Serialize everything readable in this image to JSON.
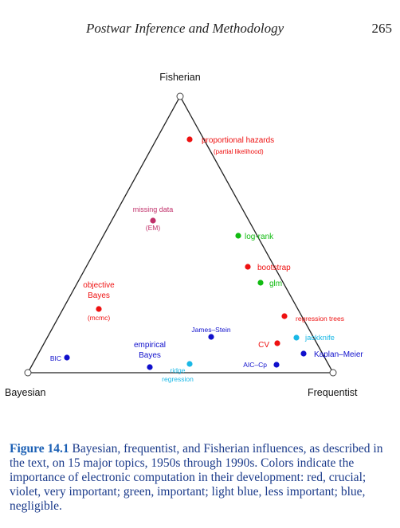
{
  "header": {
    "running_title": "Postwar Inference and Methodology",
    "page_number": "265"
  },
  "figure": {
    "vertices": {
      "top": "Fisherian",
      "left": "Bayesian",
      "right": "Frequentist"
    },
    "colors": {
      "red": "#ee1111",
      "violet": "#c0306a",
      "green": "#11bb11",
      "light_blue": "#1ab8e6",
      "blue": "#1010cc"
    },
    "points": [
      {
        "name": "proportional hazards",
        "sub": "(partial likelihood)",
        "color": "red"
      },
      {
        "name": "missing data",
        "sub": "(EM)",
        "color": "violet"
      },
      {
        "name": "log-rank",
        "sub": "",
        "color": "green"
      },
      {
        "name": "bootstrap",
        "sub": "",
        "color": "red"
      },
      {
        "name": "glm",
        "sub": "",
        "color": "green"
      },
      {
        "name": "objective Bayes",
        "sub": "(mcmc)",
        "color": "red"
      },
      {
        "name": "regression trees",
        "sub": "",
        "color": "red"
      },
      {
        "name": "James–Stein",
        "sub": "",
        "color": "blue"
      },
      {
        "name": "jackknife",
        "sub": "",
        "color": "light_blue"
      },
      {
        "name": "CV",
        "sub": "",
        "color": "red"
      },
      {
        "name": "Kaplan–Meier",
        "sub": "",
        "color": "blue"
      },
      {
        "name": "empirical Bayes",
        "sub": "",
        "color": "blue"
      },
      {
        "name": "BIC",
        "sub": "",
        "color": "blue"
      },
      {
        "name": "ridge regression",
        "sub": "",
        "color": "light_blue"
      },
      {
        "name": "AIC–Cp",
        "sub": "",
        "color": "blue"
      }
    ]
  },
  "caption": {
    "label": "Figure 14.1",
    "text": "Bayesian, frequentist, and Fisherian influences, as described in the text, on 15 major topics, 1950s through 1990s. Colors indicate the importance of electronic computation in their development: red, crucial; violet, very important; green, important; light blue, less important; blue, negligible."
  }
}
